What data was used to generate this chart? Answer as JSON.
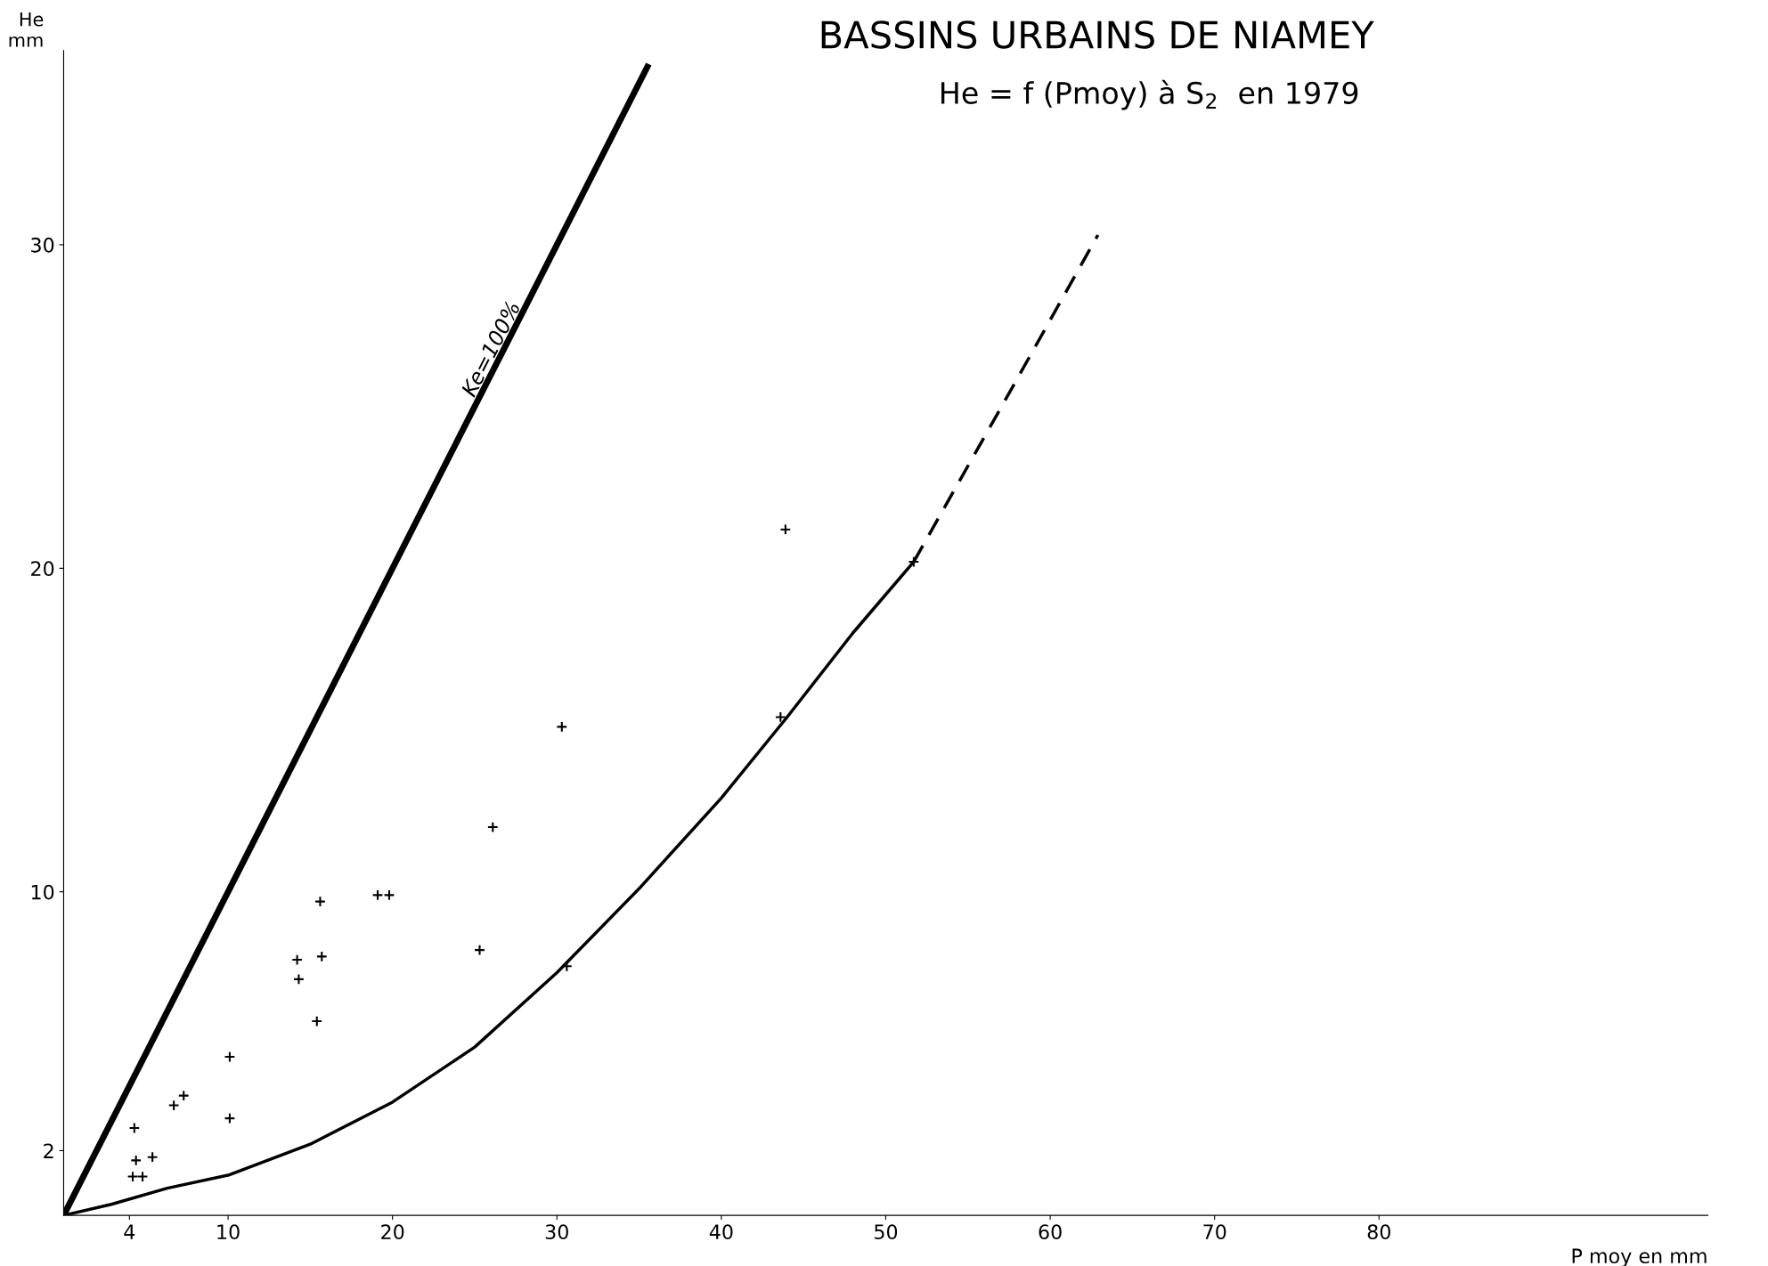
{
  "chart_data": {
    "type": "scatter",
    "title": "BASSINS URBAINS DE NIAMEY",
    "subtitle": "He = f (Pmoy) à S$_{2}$  en 1979",
    "xlabel": "P moy en mm",
    "ylabel": "He\nmm",
    "xlim": [
      0,
      100
    ],
    "ylim": [
      0,
      36
    ],
    "xticks": [
      4,
      10,
      20,
      30,
      40,
      50,
      60,
      70,
      80
    ],
    "yticks": [
      2,
      10,
      20,
      30
    ],
    "grid": false,
    "legend": false,
    "series": [
      {
        "marker": "cross",
        "color": "#000000",
        "x": [
          4.3,
          4.4,
          4.2,
          4.8,
          5.4,
          6.7,
          7.3,
          10.1,
          10.1,
          14.2,
          14.3,
          15.4,
          15.6,
          15.7,
          19.1,
          19.8,
          25.3,
          26.1,
          30.3,
          30.6,
          43.6,
          43.9,
          51.7
        ],
        "values": [
          2.7,
          1.7,
          1.2,
          1.2,
          1.8,
          3.4,
          3.7,
          4.9,
          3.0,
          7.9,
          7.3,
          6.0,
          9.7,
          8.0,
          9.9,
          9.9,
          8.2,
          12.0,
          15.1,
          7.7,
          15.4,
          21.2,
          20.2
        ]
      },
      {
        "type": "line",
        "name": "Ke=100%",
        "color": "#000000",
        "line_style": "solid",
        "x": [
          0,
          35.5
        ],
        "values": [
          0,
          35.5
        ]
      },
      {
        "type": "line",
        "color": "#000000",
        "line_style": "solid",
        "x": [
          0,
          2.9,
          6.3,
          10,
          15,
          20,
          25,
          30,
          35,
          40,
          44,
          48,
          51.7
        ],
        "values": [
          0,
          0.34,
          0.84,
          1.24,
          2.2,
          3.5,
          5.2,
          7.5,
          10.1,
          12.9,
          15.4,
          18.0,
          20.2
        ]
      },
      {
        "type": "line",
        "color": "#000000",
        "line_style": "dashed",
        "x": [
          51.7,
          57.6,
          62.9
        ],
        "values": [
          20.2,
          25.5,
          30.3
        ]
      }
    ]
  }
}
